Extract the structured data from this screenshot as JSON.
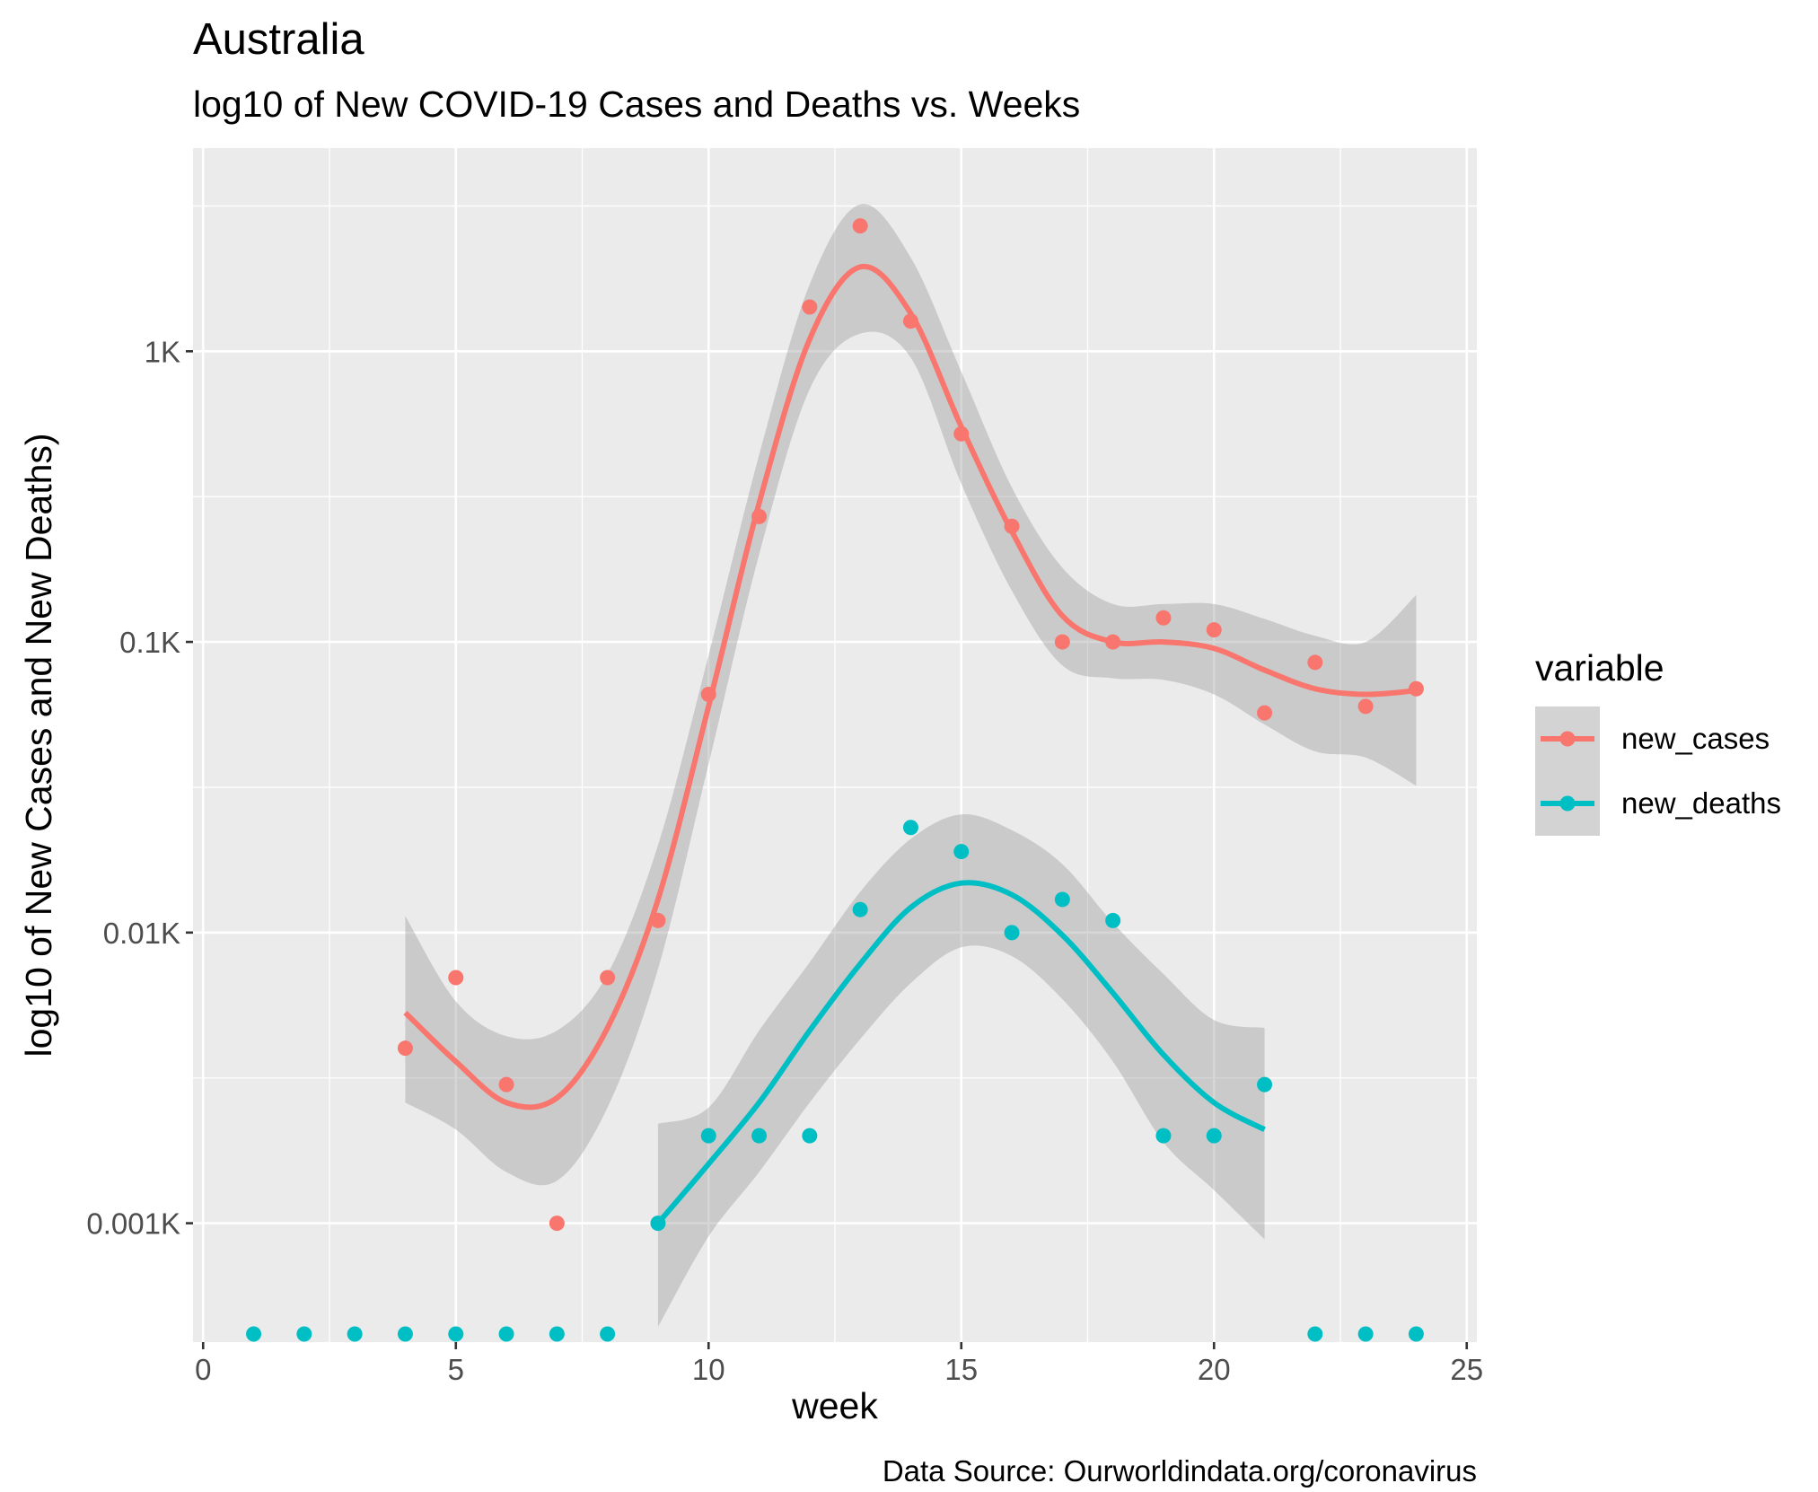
{
  "chart_data": {
    "type": "scatter",
    "title": "Australia",
    "subtitle": "log10 of New COVID-19 Cases and Deaths vs. Weeks",
    "xlabel": "week",
    "ylabel": "log10 of New Cases and New Deaths)",
    "caption": "Data Source: Ourworldindata.org/coronavirus",
    "x_scale": "linear",
    "y_scale": "log10",
    "xlim": [
      -0.2,
      25.2
    ],
    "ylim": [
      0.00039,
      5.0
    ],
    "x_ticks": [
      0,
      5,
      10,
      15,
      20,
      25
    ],
    "x_tick_labels": [
      "0",
      "5",
      "10",
      "15",
      "20",
      "25"
    ],
    "y_ticks": [
      0.001,
      0.01,
      0.1,
      1
    ],
    "y_tick_labels": [
      "0.001K",
      "0.01K",
      "0.1K",
      "1K"
    ],
    "grid": true,
    "background": "#ebebeb",
    "legend": {
      "title": "variable",
      "position": "right",
      "entries": [
        "new_cases",
        "new_deaths"
      ]
    },
    "smoothing": "loess with confidence band",
    "zero_values_shown_at_axis_bottom": true,
    "series": [
      {
        "name": "new_cases",
        "color": "#f8766d",
        "x": [
          4,
          5,
          6,
          7,
          8,
          9,
          10,
          11,
          12,
          13,
          14,
          15,
          16,
          17,
          18,
          19,
          20,
          21,
          22,
          23,
          24
        ],
        "y": [
          0.004,
          0.007,
          0.003,
          0.001,
          0.007,
          0.011,
          0.066,
          0.27,
          1.42,
          2.7,
          1.27,
          0.52,
          0.25,
          0.1,
          0.1,
          0.121,
          0.11,
          0.057,
          0.085,
          0.06,
          0.069
        ],
        "fit_x": [
          4,
          5,
          6,
          7,
          8,
          9,
          10,
          11,
          12,
          13,
          14,
          15,
          16,
          17,
          18,
          19,
          20,
          21,
          22,
          23,
          24
        ],
        "fit_y": [
          0.0053,
          0.0036,
          0.0026,
          0.0027,
          0.0047,
          0.013,
          0.06,
          0.3,
          1.1,
          1.95,
          1.35,
          0.55,
          0.24,
          0.123,
          0.1,
          0.1,
          0.095,
          0.08,
          0.069,
          0.066,
          0.068
        ],
        "band_lower": [
          0.0026,
          0.0021,
          0.0015,
          0.0014,
          0.0025,
          0.0075,
          0.038,
          0.2,
          0.74,
          1.15,
          0.95,
          0.35,
          0.15,
          0.083,
          0.075,
          0.074,
          0.066,
          0.052,
          0.042,
          0.04,
          0.032
        ],
        "band_upper": [
          0.0114,
          0.0058,
          0.0044,
          0.0046,
          0.0072,
          0.02,
          0.09,
          0.44,
          1.7,
          3.2,
          2.1,
          0.85,
          0.34,
          0.18,
          0.135,
          0.135,
          0.135,
          0.12,
          0.105,
          0.1,
          0.145
        ]
      },
      {
        "name": "new_deaths",
        "color": "#00bfc4",
        "x": [
          9,
          10,
          11,
          12,
          13,
          14,
          15,
          16,
          17,
          18,
          19,
          20,
          21
        ],
        "y": [
          0.001,
          0.002,
          0.002,
          0.002,
          0.012,
          0.023,
          0.019,
          0.01,
          0.013,
          0.011,
          0.002,
          0.002,
          0.003
        ],
        "zero_weeks": [
          1,
          2,
          3,
          4,
          5,
          6,
          7,
          8,
          22,
          23,
          24
        ],
        "fit_x": [
          9,
          10,
          11,
          12,
          13,
          14,
          15,
          16,
          17,
          18,
          19,
          20,
          21
        ],
        "fit_y": [
          0.001,
          0.0016,
          0.0026,
          0.0046,
          0.0078,
          0.0122,
          0.0148,
          0.0135,
          0.0098,
          0.0062,
          0.0038,
          0.0026,
          0.0021
        ],
        "band_lower": [
          0.00044,
          0.0009,
          0.0015,
          0.0026,
          0.0043,
          0.0067,
          0.0089,
          0.0083,
          0.0059,
          0.0036,
          0.0019,
          0.0013,
          0.00088
        ],
        "band_upper": [
          0.0022,
          0.0025,
          0.0046,
          0.0079,
          0.0138,
          0.021,
          0.0255,
          0.0225,
          0.0172,
          0.0108,
          0.0072,
          0.005,
          0.0047
        ]
      }
    ]
  }
}
